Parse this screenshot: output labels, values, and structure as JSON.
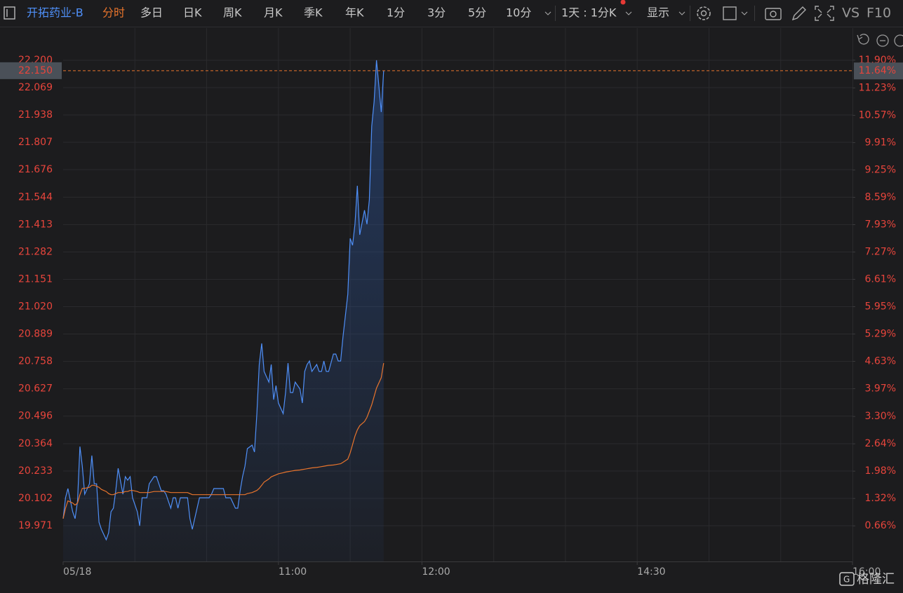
{
  "toolbar": {
    "stock": "开拓药业-B",
    "tabs": [
      "分时",
      "多日",
      "日K",
      "周K",
      "月K",
      "季K",
      "年K",
      "1分",
      "3分",
      "5分",
      "10分"
    ],
    "period": "1天 : 1分K",
    "display": "显示",
    "vs": "VS",
    "f10": "F10"
  },
  "watermark": "格隆汇",
  "chart_data": {
    "type": "line",
    "x": [
      0,
      1,
      2,
      4,
      5,
      6,
      7,
      8,
      9,
      11,
      12,
      13,
      14,
      15,
      16,
      18,
      19,
      20,
      21,
      22,
      23,
      25,
      26,
      27,
      28,
      29,
      31,
      32,
      33,
      34,
      35,
      36,
      38,
      39,
      40,
      41,
      42,
      43,
      45,
      46,
      47,
      48,
      49,
      50,
      52,
      53,
      54,
      55,
      56,
      57,
      59,
      60,
      61,
      62,
      63,
      65,
      66,
      67,
      68,
      69,
      70,
      72,
      73,
      74,
      75,
      76,
      77,
      79,
      80,
      81,
      82,
      83,
      84,
      86,
      87,
      88,
      89,
      90,
      92,
      93,
      94,
      95,
      96,
      97,
      99,
      100,
      101,
      102,
      103,
      104,
      106,
      107,
      108,
      109,
      110,
      111,
      113,
      114,
      115,
      116,
      117,
      119,
      120,
      121,
      122,
      123,
      124,
      126,
      127,
      128,
      129,
      130,
      131,
      133,
      134
    ],
    "series": [
      {
        "color": "#4f8ff7",
        "values": [
          20.005,
          20.105,
          20.149,
          20.038,
          20.005,
          20.089,
          20.35,
          20.256,
          20.122,
          20.172,
          20.307,
          20.172,
          20.172,
          19.988,
          19.954,
          19.904,
          19.937,
          20.038,
          20.055,
          20.139,
          20.246,
          20.122,
          20.206,
          20.189,
          20.206,
          20.105,
          20.038,
          19.971,
          20.105,
          20.105,
          20.105,
          20.172,
          20.206,
          20.206,
          20.172,
          20.139,
          20.139,
          20.122,
          20.055,
          20.105,
          20.105,
          20.055,
          20.105,
          20.105,
          20.105,
          20.005,
          19.954,
          20.005,
          20.055,
          20.105,
          20.105,
          20.105,
          20.105,
          20.122,
          20.149,
          20.149,
          20.149,
          20.149,
          20.105,
          20.105,
          20.105,
          20.055,
          20.055,
          20.139,
          20.206,
          20.256,
          20.34,
          20.357,
          20.324,
          20.508,
          20.743,
          20.844,
          20.71,
          20.659,
          20.743,
          20.575,
          20.642,
          20.559,
          20.508,
          20.609,
          20.75,
          20.609,
          20.609,
          20.659,
          20.626,
          20.559,
          20.71,
          20.743,
          20.76,
          20.71,
          20.743,
          20.71,
          20.71,
          20.76,
          20.71,
          20.71,
          20.793,
          20.793,
          20.76,
          20.76,
          20.877,
          21.079,
          21.347,
          21.314,
          21.415,
          21.599,
          21.364,
          21.482,
          21.415,
          21.532,
          21.884,
          22.002,
          22.2,
          21.952,
          22.15
        ]
      },
      {
        "color": "#e8742c",
        "values": [
          20.005,
          20.055,
          20.09,
          20.08,
          20.07,
          20.08,
          20.12,
          20.15,
          20.15,
          20.155,
          20.165,
          20.165,
          20.16,
          20.155,
          20.145,
          20.135,
          20.125,
          20.12,
          20.12,
          20.125,
          20.13,
          20.13,
          20.135,
          20.135,
          20.14,
          20.14,
          20.135,
          20.13,
          20.13,
          20.13,
          20.13,
          20.13,
          20.135,
          20.135,
          20.135,
          20.135,
          20.135,
          20.135,
          20.13,
          20.13,
          20.13,
          20.13,
          20.13,
          20.13,
          20.13,
          20.125,
          20.12,
          20.12,
          20.12,
          20.12,
          20.12,
          20.12,
          20.12,
          20.12,
          20.12,
          20.12,
          20.12,
          20.12,
          20.12,
          20.12,
          20.12,
          20.12,
          20.12,
          20.12,
          20.12,
          20.12,
          20.125,
          20.13,
          20.135,
          20.14,
          20.15,
          20.165,
          20.18,
          20.195,
          20.205,
          20.21,
          20.215,
          20.22,
          20.225,
          20.228,
          20.23,
          20.232,
          20.234,
          20.236,
          20.238,
          20.24,
          20.242,
          20.244,
          20.246,
          20.248,
          20.25,
          20.252,
          20.254,
          20.256,
          20.258,
          20.26,
          20.262,
          20.264,
          20.266,
          20.268,
          20.275,
          20.29,
          20.32,
          20.36,
          20.4,
          20.43,
          20.45,
          20.47,
          20.49,
          20.52,
          20.55,
          20.59,
          20.63,
          20.68,
          20.75
        ]
      }
    ],
    "xlim": [
      0,
      330
    ],
    "xticks": [
      {
        "value": 0,
        "label": "05/18"
      },
      {
        "value": 90,
        "label": "11:00"
      },
      {
        "value": 150,
        "label": "12:00"
      },
      {
        "value": 240,
        "label": "14:30"
      },
      {
        "value": 330,
        "label": "16:00"
      }
    ],
    "x_gridlines": [
      30,
      60,
      90,
      120,
      150,
      180,
      210,
      240,
      270,
      300
    ],
    "ylim": [
      19.8,
      22.23
    ],
    "yticks": [
      {
        "value": 19.971,
        "label": "19.971"
      },
      {
        "value": 20.102,
        "label": "20.102"
      },
      {
        "value": 20.233,
        "label": "20.233"
      },
      {
        "value": 20.364,
        "label": "20.364"
      },
      {
        "value": 20.496,
        "label": "20.496"
      },
      {
        "value": 20.627,
        "label": "20.627"
      },
      {
        "value": 20.758,
        "label": "20.758"
      },
      {
        "value": 20.889,
        "label": "20.889"
      },
      {
        "value": 21.02,
        "label": "21.020"
      },
      {
        "value": 21.151,
        "label": "21.151"
      },
      {
        "value": 21.282,
        "label": "21.282"
      },
      {
        "value": 21.413,
        "label": "21.413"
      },
      {
        "value": 21.544,
        "label": "21.544"
      },
      {
        "value": 21.676,
        "label": "21.676"
      },
      {
        "value": 21.807,
        "label": "21.807"
      },
      {
        "value": 21.938,
        "label": "21.938"
      },
      {
        "value": 22.069,
        "label": "22.069"
      },
      {
        "value": 22.2,
        "label": "22.200"
      }
    ],
    "y2lim": [
      -0.2,
      12.05
    ],
    "y2ticks": [
      {
        "value": 0.66,
        "label": "0.66%"
      },
      {
        "value": 1.32,
        "label": "1.32%"
      },
      {
        "value": 1.98,
        "label": "1.98%"
      },
      {
        "value": 2.64,
        "label": "2.64%"
      },
      {
        "value": 3.3,
        "label": "3.30%"
      },
      {
        "value": 3.97,
        "label": "3.97%"
      },
      {
        "value": 4.63,
        "label": "4.63%"
      },
      {
        "value": 5.29,
        "label": "5.29%"
      },
      {
        "value": 5.95,
        "label": "5.95%"
      },
      {
        "value": 6.61,
        "label": "6.61%"
      },
      {
        "value": 7.27,
        "label": "7.27%"
      },
      {
        "value": 7.93,
        "label": "7.93%"
      },
      {
        "value": 8.59,
        "label": "8.59%"
      },
      {
        "value": 9.25,
        "label": "9.25%"
      },
      {
        "value": 9.91,
        "label": "9.91%"
      },
      {
        "value": 10.57,
        "label": "10.57%"
      },
      {
        "value": 11.23,
        "label": "11.23%"
      },
      {
        "value": 11.9,
        "label": "11.90%"
      }
    ],
    "last_price": {
      "value": 22.15,
      "label": "22.150"
    },
    "last_change": {
      "value": 11.64,
      "label": "11.64%"
    },
    "grid": true
  }
}
